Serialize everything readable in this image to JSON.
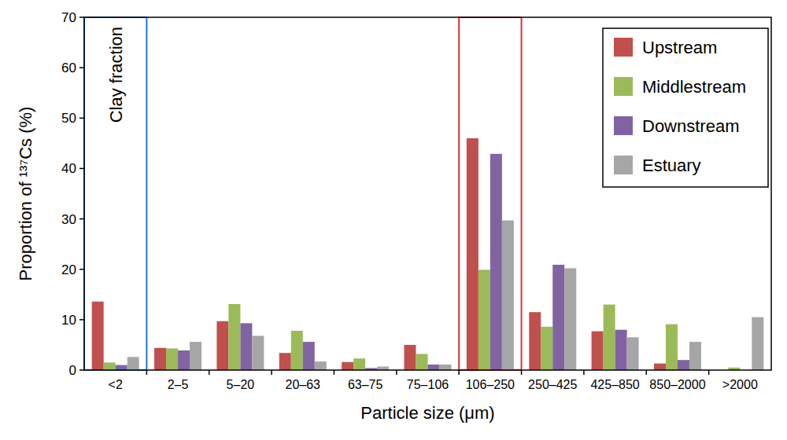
{
  "chart_data": {
    "type": "bar",
    "y_label": "Proportion of ¹³⁷Cs (%)",
    "x_label": "Particle size (μm)",
    "annotations": [
      "Clay fraction"
    ],
    "categories": [
      "<2",
      "2–5",
      "5–20",
      "20–63",
      "63–75",
      "75–106",
      "106–250",
      "250–425",
      "425–850",
      "850–2000",
      ">2000"
    ],
    "series": [
      {
        "name": "Upstream",
        "color": "#c0504d",
        "values": [
          13.6,
          4.4,
          9.7,
          3.4,
          1.6,
          5.0,
          46.0,
          11.5,
          7.7,
          1.3,
          0
        ]
      },
      {
        "name": "Middlestream",
        "color": "#9bbb59",
        "values": [
          1.5,
          4.3,
          13.1,
          7.8,
          2.3,
          3.2,
          19.9,
          8.6,
          13.0,
          9.1,
          0.5
        ]
      },
      {
        "name": "Downstream",
        "color": "#8064a2",
        "values": [
          1.0,
          3.9,
          9.3,
          5.6,
          0.4,
          1.1,
          42.9,
          20.9,
          8.0,
          2.0,
          0
        ]
      },
      {
        "name": "Estuary",
        "color": "#a6a6a6",
        "values": [
          2.6,
          5.6,
          6.8,
          1.7,
          0.7,
          1.1,
          29.7,
          20.2,
          6.5,
          5.6,
          10.5
        ]
      }
    ],
    "ylim": [
      0,
      70
    ],
    "yticks": [
      0,
      10,
      20,
      30,
      40,
      50,
      60,
      70
    ],
    "grid": false,
    "legend": "upper right"
  }
}
